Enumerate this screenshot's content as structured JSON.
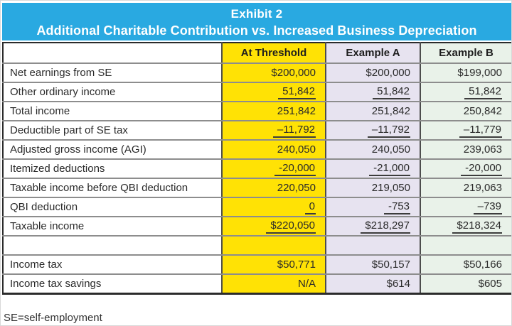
{
  "header": {
    "line1": "Exhibit 2",
    "line2": "Additional Charitable Contribution vs. Increased Business Depreciation"
  },
  "table": {
    "columns": [
      "",
      "At Threshold",
      "Example A",
      "Example B"
    ],
    "rows": [
      {
        "label": "Net earnings from SE",
        "values": [
          "$200,000",
          "$200,000",
          "$199,000"
        ],
        "underline": false
      },
      {
        "label": "Other ordinary income",
        "values": [
          "51,842",
          "51,842",
          "51,842"
        ],
        "underline": true
      },
      {
        "label": "Total income",
        "values": [
          "251,842",
          "251,842",
          "250,842"
        ],
        "underline": false
      },
      {
        "label": "Deductible part of SE tax",
        "values": [
          "–11,792",
          "–11,792",
          "–11,779"
        ],
        "underline": true
      },
      {
        "label": "Adjusted gross income (AGI)",
        "values": [
          "240,050",
          "240,050",
          "239,063"
        ],
        "underline": false
      },
      {
        "label": "Itemized deductions",
        "values": [
          "-20,000",
          "-21,000",
          "-20,000"
        ],
        "underline": true
      },
      {
        "label": "Taxable income before QBI deduction",
        "values": [
          "220,050",
          "219,050",
          "219,063"
        ],
        "underline": false
      },
      {
        "label": "QBI deduction",
        "values": [
          "0",
          "-753",
          "–739"
        ],
        "underline": true
      },
      {
        "label": "Taxable income",
        "values": [
          "$220,050",
          "$218,297",
          "$218,324"
        ],
        "underline": true
      },
      {
        "label": "",
        "values": [
          "",
          "",
          ""
        ],
        "underline": false
      },
      {
        "label": "Income tax",
        "values": [
          "$50,771",
          "$50,157",
          "$50,166"
        ],
        "underline": false
      },
      {
        "label": "Income tax savings",
        "values": [
          "N/A",
          "$614",
          "$605"
        ],
        "underline": false
      }
    ]
  },
  "footnote": "SE=self-employment",
  "colors": {
    "title_bg": "#29A9E1",
    "at_threshold_bg": "#FFE205",
    "example_a_bg": "#E7E3F0",
    "example_b_bg": "#E9F2E9"
  }
}
